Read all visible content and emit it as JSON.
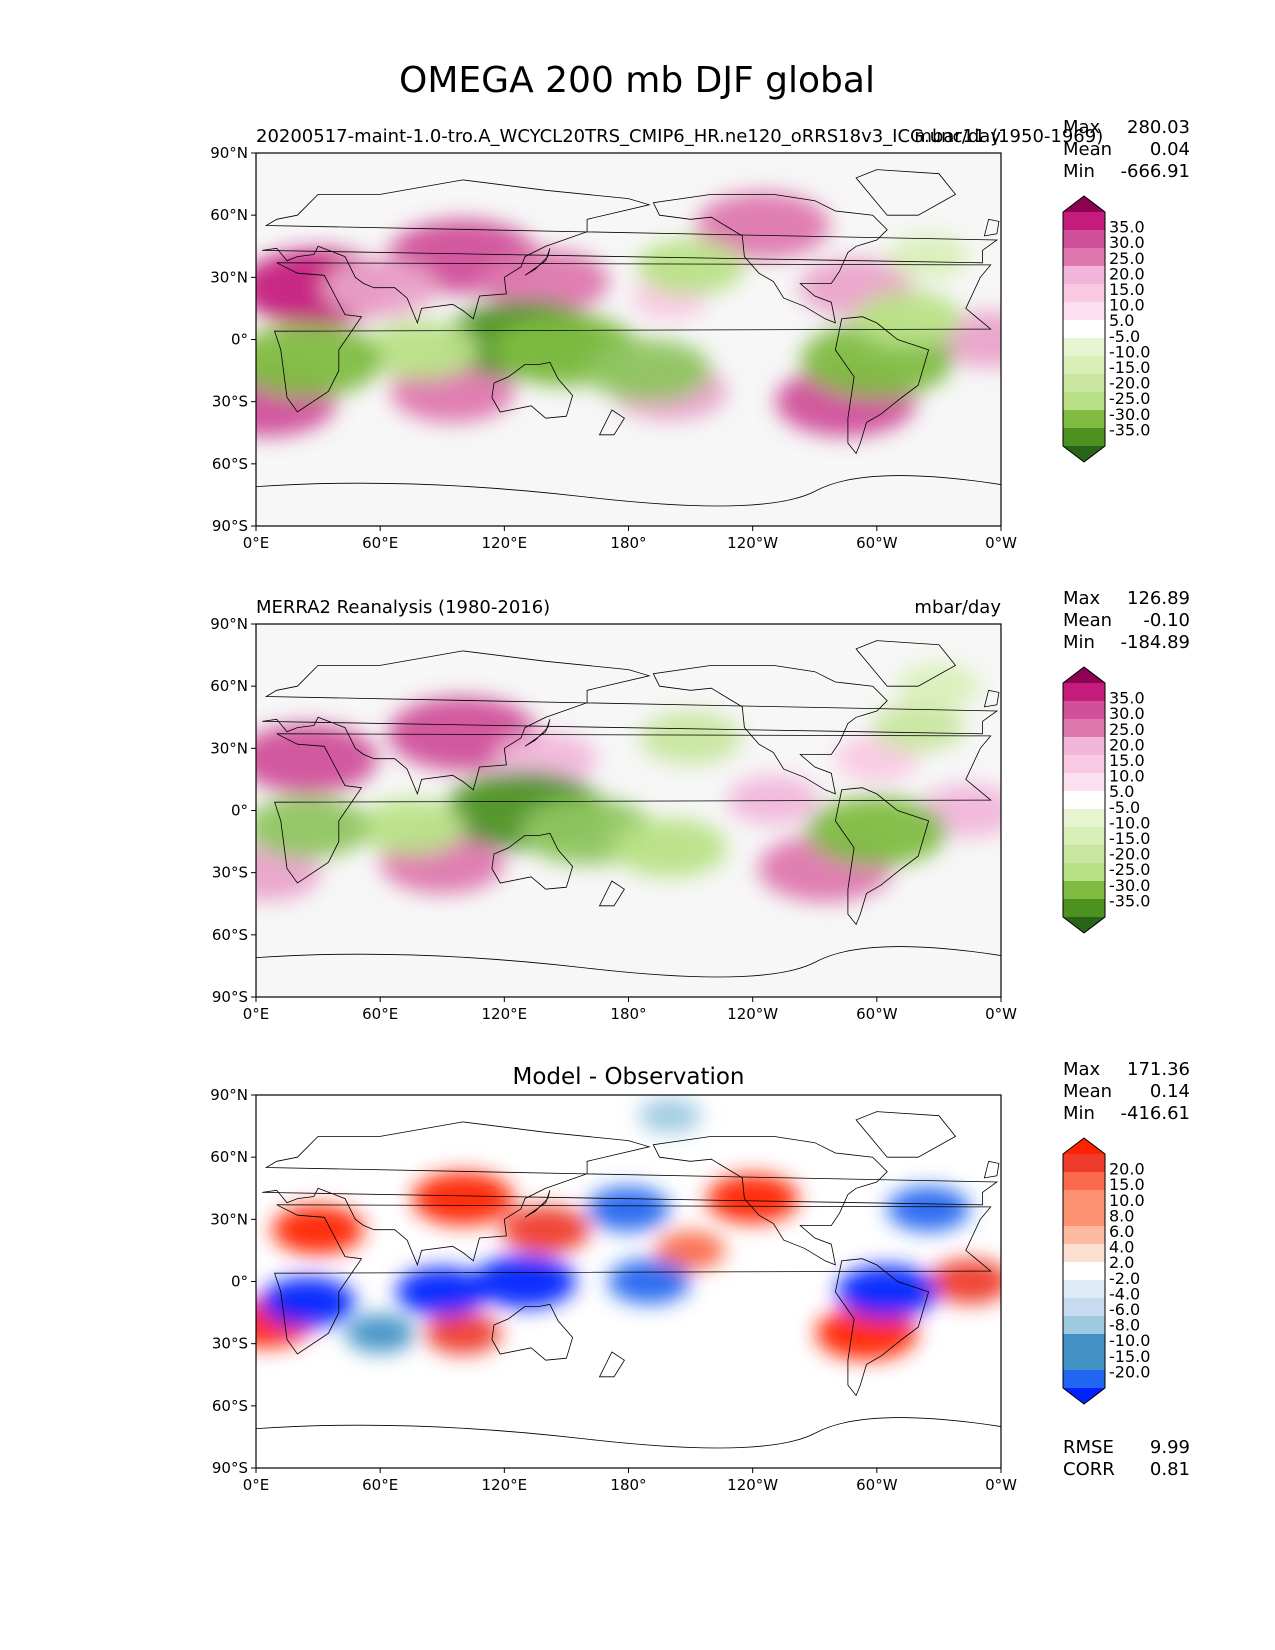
{
  "title": "OMEGA 200 mb DJF global",
  "colors": {
    "pos": [
      "#f7f7f7",
      "#fde0ef",
      "#f9c8e1",
      "#f1b6da",
      "#e9a3c9",
      "#de77ae",
      "#d0509a",
      "#c51b7d",
      "#8e0152"
    ],
    "neg": [
      "#f7f7f7",
      "#e6f5d0",
      "#d9efb8",
      "#c8e6a0",
      "#b8e186",
      "#8fc560",
      "#7fbc41",
      "#4d9221",
      "#276419"
    ],
    "diff_pos": [
      "#ffffff",
      "#fee0d2",
      "#fcbba1",
      "#fc9272",
      "#fb6a4a",
      "#ef3b2c",
      "#ff2200"
    ],
    "diff_neg": [
      "#ffffff",
      "#deebf7",
      "#c6dbef",
      "#9ecae1",
      "#4292c6",
      "#2166f0",
      "#0022ff"
    ],
    "land": "#000000",
    "ocean_bg": "#f7f7f7"
  },
  "chart_data": [
    {
      "type": "heatmap",
      "subtitle_left": "20200517-maint-1.0-tro.A_WCYCL20TRS_CMIP6_HR.ne120_oRRS18v3_ICG.unc11 (1950-1969)",
      "subtitle_right": "mbar/day",
      "xlabel": "",
      "ylabel": "",
      "xticks": [
        "0°E",
        "60°E",
        "120°E",
        "180°",
        "120°W",
        "60°W",
        "0°W"
      ],
      "yticks": [
        "90°N",
        "60°N",
        "30°N",
        "0°",
        "30°S",
        "60°S",
        "90°S"
      ],
      "xlim": [
        0,
        360
      ],
      "ylim": [
        -90,
        90
      ],
      "stats": {
        "max_label": "Max",
        "max": "280.03",
        "mean_label": "Mean",
        "mean": "0.04",
        "min_label": "Min",
        "min": "-666.91"
      },
      "colorbar_levels": [
        "35.0",
        "30.0",
        "25.0",
        "20.0",
        "15.0",
        "10.0",
        "5.0",
        "-5.0",
        "-10.0",
        "-15.0",
        "-20.0",
        "-25.0",
        "-30.0",
        "-35.0"
      ],
      "features": [
        {
          "lon": 30,
          "lat": 25,
          "value": 35
        },
        {
          "lon": 100,
          "lat": 40,
          "value": 33
        },
        {
          "lon": 140,
          "lat": 28,
          "value": 26
        },
        {
          "lon": 60,
          "lat": 25,
          "value": 22
        },
        {
          "lon": 200,
          "lat": 20,
          "value": 10
        },
        {
          "lon": 5,
          "lat": -30,
          "value": 30
        },
        {
          "lon": 95,
          "lat": -25,
          "value": 25
        },
        {
          "lon": 200,
          "lat": -25,
          "value": 22
        },
        {
          "lon": 290,
          "lat": 25,
          "value": 22
        },
        {
          "lon": 355,
          "lat": 0,
          "value": 20
        },
        {
          "lon": 285,
          "lat": -30,
          "value": 30
        },
        {
          "lon": 245,
          "lat": 55,
          "value": 28
        },
        {
          "lon": 130,
          "lat": 0,
          "value": -36
        },
        {
          "lon": 150,
          "lat": -5,
          "value": -32
        },
        {
          "lon": 190,
          "lat": -15,
          "value": -25
        },
        {
          "lon": 80,
          "lat": -5,
          "value": -22
        },
        {
          "lon": 25,
          "lat": -10,
          "value": -33
        },
        {
          "lon": 300,
          "lat": -10,
          "value": -34
        },
        {
          "lon": 210,
          "lat": 35,
          "value": -20
        },
        {
          "lon": 315,
          "lat": 10,
          "value": -20
        },
        {
          "lon": 325,
          "lat": 40,
          "value": -12
        }
      ]
    },
    {
      "type": "heatmap",
      "subtitle_left": "MERRA2 Reanalysis (1980-2016)",
      "subtitle_right": "mbar/day",
      "xlabel": "",
      "ylabel": "",
      "xticks": [
        "0°E",
        "60°E",
        "120°E",
        "180°",
        "120°W",
        "60°W",
        "0°W"
      ],
      "yticks": [
        "90°N",
        "60°N",
        "30°N",
        "0°",
        "30°S",
        "60°S",
        "90°S"
      ],
      "xlim": [
        0,
        360
      ],
      "ylim": [
        -90,
        90
      ],
      "stats": {
        "max_label": "Max",
        "max": "126.89",
        "mean_label": "Mean",
        "mean": "-0.10",
        "min_label": "Min",
        "min": "-184.89"
      },
      "colorbar_levels": [
        "35.0",
        "30.0",
        "25.0",
        "20.0",
        "15.0",
        "10.0",
        "5.0",
        "-5.0",
        "-10.0",
        "-15.0",
        "-20.0",
        "-25.0",
        "-30.0",
        "-35.0"
      ],
      "features": [
        {
          "lon": 25,
          "lat": 25,
          "value": 30
        },
        {
          "lon": 100,
          "lat": 37,
          "value": 33
        },
        {
          "lon": 140,
          "lat": 25,
          "value": 18
        },
        {
          "lon": 90,
          "lat": -25,
          "value": 25
        },
        {
          "lon": 275,
          "lat": -28,
          "value": 28
        },
        {
          "lon": 5,
          "lat": -30,
          "value": 20
        },
        {
          "lon": 345,
          "lat": 0,
          "value": 18
        },
        {
          "lon": 250,
          "lat": 5,
          "value": 15
        },
        {
          "lon": 300,
          "lat": 25,
          "value": 12
        },
        {
          "lon": 130,
          "lat": 0,
          "value": -36
        },
        {
          "lon": 160,
          "lat": -10,
          "value": -28
        },
        {
          "lon": 200,
          "lat": -18,
          "value": -22
        },
        {
          "lon": 75,
          "lat": -8,
          "value": -20
        },
        {
          "lon": 25,
          "lat": -8,
          "value": -25
        },
        {
          "lon": 300,
          "lat": -10,
          "value": -30
        },
        {
          "lon": 210,
          "lat": 35,
          "value": -18
        },
        {
          "lon": 320,
          "lat": 40,
          "value": -15
        },
        {
          "lon": 330,
          "lat": 60,
          "value": -12
        }
      ]
    },
    {
      "type": "heatmap",
      "subtitle_center": "Model - Observation",
      "xlabel": "",
      "ylabel": "",
      "xticks": [
        "0°E",
        "60°E",
        "120°E",
        "180°",
        "120°W",
        "60°W",
        "0°W"
      ],
      "yticks": [
        "90°N",
        "60°N",
        "30°N",
        "0°",
        "30°S",
        "60°S",
        "90°S"
      ],
      "xlim": [
        0,
        360
      ],
      "ylim": [
        -90,
        90
      ],
      "stats": {
        "max_label": "Max",
        "max": "171.36",
        "mean_label": "Mean",
        "mean": "0.14",
        "min_label": "Min",
        "min": "-416.61"
      },
      "colorbar_levels": [
        "20.0",
        "15.0",
        "10.0",
        "8.0",
        "6.0",
        "4.0",
        "2.0",
        "-2.0",
        "-4.0",
        "-6.0",
        "-8.0",
        "-10.0",
        "-15.0",
        "-20.0"
      ],
      "extra": {
        "rmse_label": "RMSE",
        "rmse": "9.99",
        "corr_label": "CORR",
        "corr": "0.81"
      },
      "features": [
        {
          "lon": 30,
          "lat": 25,
          "value": 15
        },
        {
          "lon": 100,
          "lat": 40,
          "value": 18
        },
        {
          "lon": 140,
          "lat": 25,
          "value": 14
        },
        {
          "lon": 5,
          "lat": -20,
          "value": 15
        },
        {
          "lon": 240,
          "lat": 40,
          "value": 15
        },
        {
          "lon": 295,
          "lat": -25,
          "value": 18
        },
        {
          "lon": 100,
          "lat": -25,
          "value": 10
        },
        {
          "lon": 210,
          "lat": 15,
          "value": 8
        },
        {
          "lon": 345,
          "lat": 0,
          "value": 12
        },
        {
          "lon": 130,
          "lat": 0,
          "value": -18
        },
        {
          "lon": 90,
          "lat": -5,
          "value": -15
        },
        {
          "lon": 25,
          "lat": -10,
          "value": -16
        },
        {
          "lon": 305,
          "lat": -5,
          "value": -18
        },
        {
          "lon": 180,
          "lat": 35,
          "value": -12
        },
        {
          "lon": 190,
          "lat": 0,
          "value": -12
        },
        {
          "lon": 325,
          "lat": 35,
          "value": -12
        },
        {
          "lon": 200,
          "lat": 80,
          "value": -6
        },
        {
          "lon": 60,
          "lat": -25,
          "value": -8
        }
      ]
    }
  ]
}
